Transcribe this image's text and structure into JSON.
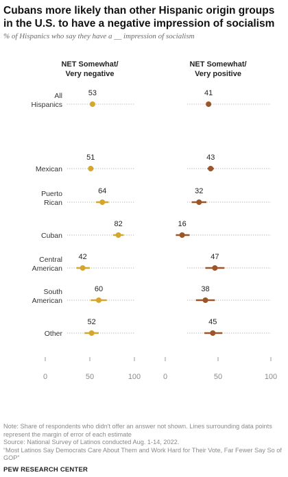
{
  "header": {
    "title": "Cubans more likely than other Hispanic origin groups in the U.S. to have a negative impression of socialism",
    "subtitle": "% of Hispanics who say they have a __ impression of socialism"
  },
  "footer": {
    "note": "Note: Share of respondents who didn't offer an answer not shown. Lines surrounding data points represent the margin of error of each estimate",
    "source": "Source: National Survey of Latinos conducted Aug. 1-14, 2022.",
    "report": "“Most Latinos Say Democrats Care About Them and Work Hard for Their Vote, Far Fewer Say So of GOP”",
    "org": "PEW RESEARCH CENTER"
  },
  "colors": {
    "negative": "#d4a72c",
    "positive": "#9c5528",
    "dotted_line": "#b0b0b0"
  },
  "chart_data": {
    "type": "scatter",
    "categories": [
      [
        "All",
        "Hispanics"
      ],
      [
        "Mexican"
      ],
      [
        "Puerto",
        "Rican"
      ],
      [
        "Cuban"
      ],
      [
        "Central",
        "American"
      ],
      [
        "South",
        "American"
      ],
      [
        "Other"
      ]
    ],
    "xlim": [
      0,
      100
    ],
    "xticks": [
      0,
      50,
      100
    ],
    "series": [
      {
        "name": "NET Somewhat/ Very negative",
        "name_lines": [
          "NET Somewhat/",
          "Very negative"
        ],
        "values": [
          53,
          51,
          64,
          82,
          42,
          60,
          52
        ],
        "error_low": [
          52,
          49,
          57,
          76,
          35,
          51,
          44
        ],
        "error_high": [
          55,
          54,
          71,
          88,
          50,
          69,
          60
        ]
      },
      {
        "name": "NET Somewhat/ Very positive",
        "name_lines": [
          "NET Somewhat/",
          "Very positive"
        ],
        "values": [
          41,
          43,
          32,
          16,
          47,
          38,
          45
        ],
        "error_low": [
          39,
          40,
          25,
          10,
          38,
          29,
          37
        ],
        "error_high": [
          43,
          46,
          39,
          23,
          56,
          47,
          54
        ]
      }
    ]
  }
}
